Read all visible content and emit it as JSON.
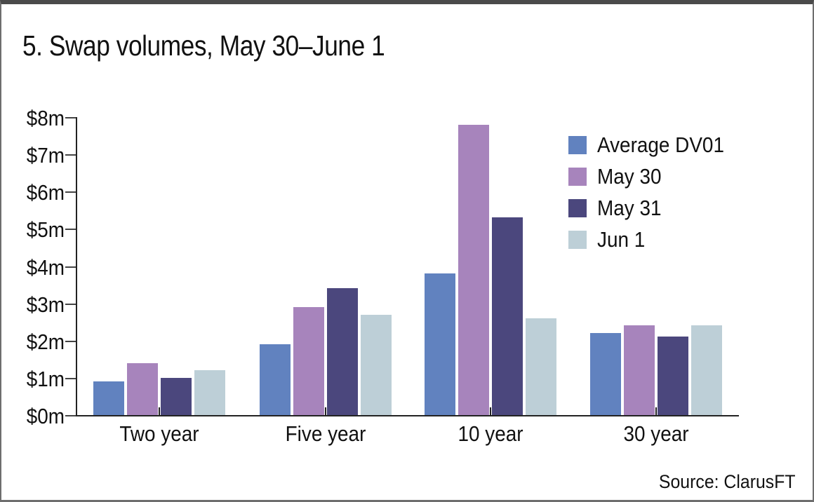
{
  "title": "5. Swap volumes, May 30–June 1",
  "source": "Source: ClarusFT",
  "chart_data": {
    "type": "bar",
    "title": "5. Swap volumes, May 30–June 1",
    "categories": [
      "Two year",
      "Five year",
      "10 year",
      "30 year"
    ],
    "series": [
      {
        "name": "Average DV01",
        "color": "#6182BF",
        "values": [
          0.9,
          1.9,
          3.8,
          2.2
        ]
      },
      {
        "name": "May 30",
        "color": "#A784BC",
        "values": [
          1.4,
          2.9,
          7.8,
          2.4
        ]
      },
      {
        "name": "May 31",
        "color": "#4B477D",
        "values": [
          1.0,
          3.4,
          5.3,
          2.1
        ]
      },
      {
        "name": "Jun 1",
        "color": "#BDCFD7",
        "values": [
          1.2,
          2.7,
          2.6,
          2.4
        ]
      }
    ],
    "xlabel": "",
    "ylabel": "",
    "ylim": [
      0,
      8
    ],
    "yticks": [
      "$0m",
      "$1m",
      "$2m",
      "$3m",
      "$4m",
      "$5m",
      "$6m",
      "$7m",
      "$8m"
    ],
    "grid": false,
    "legend_position": "upper right",
    "source_label": "Source: ClarusFT"
  }
}
